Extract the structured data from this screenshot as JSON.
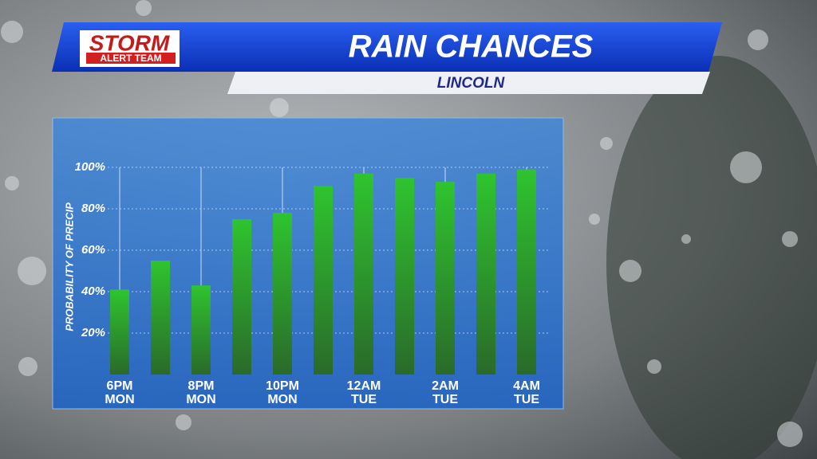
{
  "brand": {
    "line1": "STORM",
    "line2": "ALERT TEAM"
  },
  "chart_data": {
    "type": "bar",
    "title": "RAIN CHANCES",
    "subtitle": "LINCOLN",
    "y_label": "PROBABILITY OF PRECIP",
    "categories": [
      "6PM MON",
      null,
      "8PM MON",
      null,
      "10PM MON",
      null,
      "12AM TUE",
      null,
      "2AM TUE",
      null,
      "4AM TUE"
    ],
    "values": [
      41,
      55,
      43,
      75,
      78,
      91,
      97,
      95,
      93,
      97,
      99
    ],
    "color": "#2fc42f",
    "ylim": [
      0,
      100
    ],
    "yticks": [
      {
        "value": 20,
        "label": "20%"
      },
      {
        "value": 40,
        "label": "40%"
      },
      {
        "value": 60,
        "label": "60%"
      },
      {
        "value": 80,
        "label": "80%"
      },
      {
        "value": 100,
        "label": "100%"
      }
    ],
    "grid": true
  }
}
